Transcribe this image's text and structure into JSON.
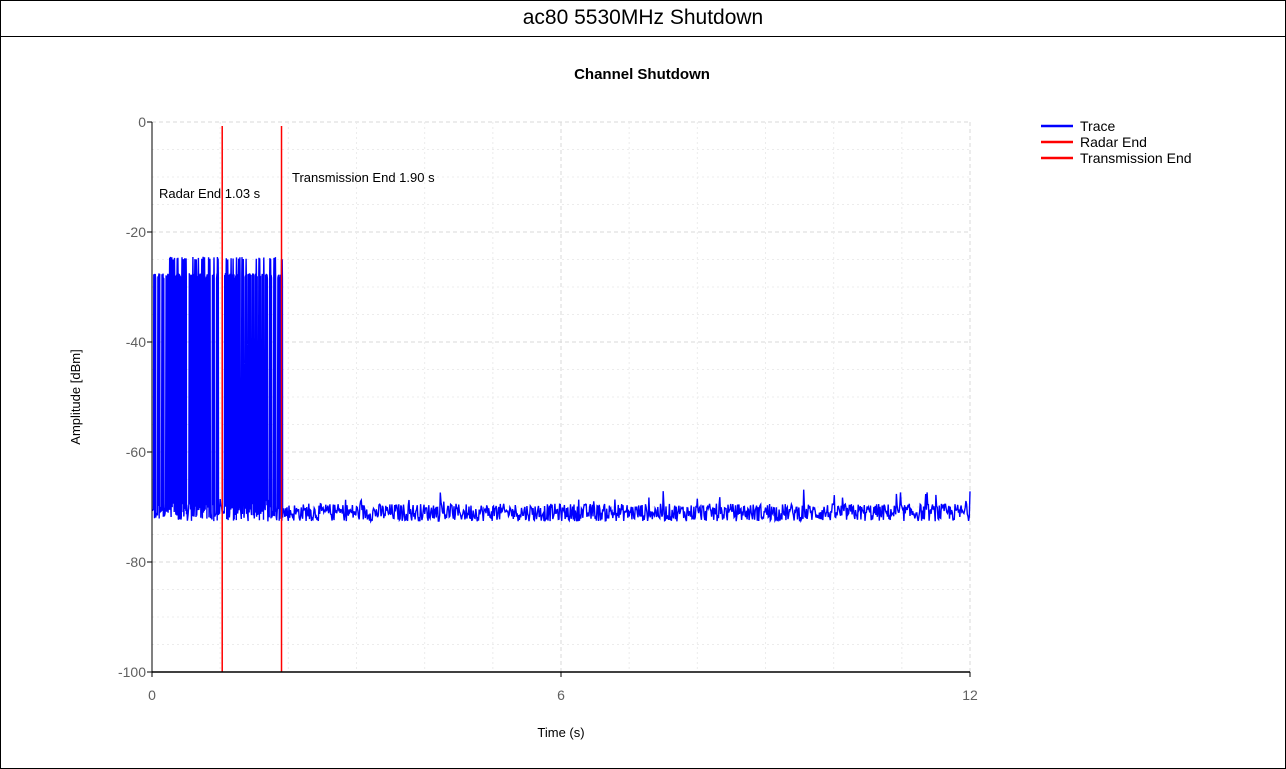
{
  "page_title": "ac80 5530MHz Shutdown",
  "chart_data": {
    "type": "line",
    "title": "Channel Shutdown",
    "xlabel": "Time (s)",
    "ylabel": "Amplitude [dBm]",
    "xlim": [
      0,
      12
    ],
    "ylim": [
      -100,
      0
    ],
    "x_ticks": [
      0,
      6,
      12
    ],
    "y_ticks": [
      0,
      -20,
      -40,
      -60,
      -80,
      -100
    ],
    "grid": true,
    "legend_position": "top-right",
    "legend": [
      "Trace",
      "Radar End",
      "Transmission End"
    ],
    "colors": {
      "trace": "#0000ff",
      "radar_end": "#ff0000",
      "transmission_end": "#ff0000"
    },
    "markers": [
      {
        "name": "Radar End",
        "x": 1.03,
        "label": "Radar End 1.03 s"
      },
      {
        "name": "Transmission End",
        "x": 1.9,
        "label": "Transmission End 1.90 s"
      }
    ],
    "series": [
      {
        "name": "Trace",
        "noise_floor_dbm": -71,
        "burst_level_dbm": -28,
        "burst_peak_dbm": -25,
        "burst_times_s": [
          0.04,
          0.1,
          0.16,
          0.22,
          0.26,
          0.3,
          0.33,
          0.37,
          0.41,
          0.45,
          0.49,
          0.56,
          0.6,
          0.64,
          0.68,
          0.72,
          0.76,
          0.8,
          0.84,
          0.9,
          0.96,
          1.08,
          1.12,
          1.16,
          1.2,
          1.24,
          1.28,
          1.33,
          1.38,
          1.43,
          1.48,
          1.53,
          1.58,
          1.63,
          1.68,
          1.74,
          1.8,
          1.86,
          1.9
        ]
      }
    ]
  }
}
